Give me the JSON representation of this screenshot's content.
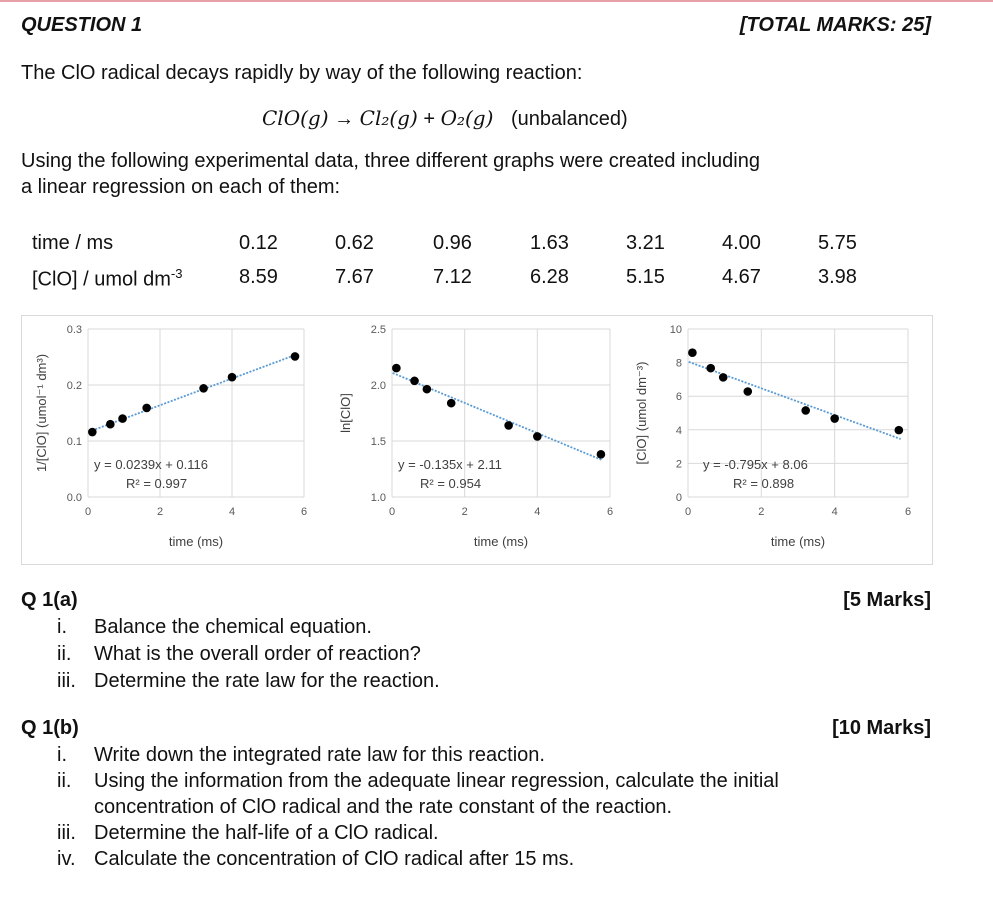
{
  "question": {
    "title": "QUESTION 1",
    "total_marks": "[TOTAL MARKS: 25]",
    "intro": "The ClO radical decays rapidly by way of the following reaction:",
    "equation": {
      "reactant": "ClO(g)",
      "arrow": "→",
      "product1": "Cl₂(g)",
      "plus": "+",
      "product2": "O₂(g)",
      "note": "(unbalanced)"
    },
    "data_intro_line1": "Using the following experimental data, three different graphs were created including",
    "data_intro_line2": "a linear regression on each of them:"
  },
  "data_table": {
    "row_labels": [
      "time / ms",
      "[ClO] / umol dm"
    ],
    "conc_unit_sup": "-3",
    "time": [
      "0.12",
      "0.62",
      "0.96",
      "1.63",
      "3.21",
      "4.00",
      "5.75"
    ],
    "conc": [
      "8.59",
      "7.67",
      "7.12",
      "6.28",
      "5.15",
      "4.67",
      "3.98"
    ]
  },
  "chart_data": [
    {
      "type": "scatter",
      "xlabel": "time (ms)",
      "ylabel": "1/[ClO]  (umol⁻¹ dm³)",
      "xlim": [
        0,
        6
      ],
      "ylim": [
        0,
        0.3
      ],
      "xticks": [
        "0",
        "2",
        "4",
        "6"
      ],
      "yticks": [
        "0.0",
        "0.1",
        "0.2",
        "0.3"
      ],
      "x": [
        0.12,
        0.62,
        0.96,
        1.63,
        3.21,
        4.0,
        5.75
      ],
      "y": [
        0.116,
        0.13,
        0.14,
        0.159,
        0.194,
        0.214,
        0.251
      ],
      "trendline": {
        "slope": 0.0239,
        "intercept": 0.116
      },
      "equation_label": "y = 0.0239x + 0.116",
      "r2_label": "R² = 0.997",
      "grid": true
    },
    {
      "type": "scatter",
      "xlabel": "time (ms)",
      "ylabel": "ln[ClO]",
      "xlim": [
        0,
        6
      ],
      "ylim": [
        1.0,
        2.5
      ],
      "xticks": [
        "0",
        "2",
        "4",
        "6"
      ],
      "yticks": [
        "1.0",
        "1.5",
        "2.0",
        "2.5"
      ],
      "x": [
        0.12,
        0.62,
        0.96,
        1.63,
        3.21,
        4.0,
        5.75
      ],
      "y": [
        2.151,
        2.037,
        1.963,
        1.838,
        1.639,
        1.541,
        1.381
      ],
      "trendline": {
        "slope": -0.135,
        "intercept": 2.11
      },
      "equation_label": "y = -0.135x + 2.11",
      "r2_label": "R² = 0.954",
      "grid": true
    },
    {
      "type": "scatter",
      "xlabel": "time (ms)",
      "ylabel": "[ClO]  (umol dm⁻³)",
      "xlim": [
        0,
        6
      ],
      "ylim": [
        0,
        10
      ],
      "xticks": [
        "0",
        "2",
        "4",
        "6"
      ],
      "yticks": [
        "0",
        "2",
        "4",
        "6",
        "8",
        "10"
      ],
      "x": [
        0.12,
        0.62,
        0.96,
        1.63,
        3.21,
        4.0,
        5.75
      ],
      "y": [
        8.59,
        7.67,
        7.12,
        6.28,
        5.15,
        4.67,
        3.98
      ],
      "trendline": {
        "slope": -0.795,
        "intercept": 8.06
      },
      "equation_label": "y = -0.795x + 8.06",
      "r2_label": "R² = 0.898",
      "grid": true
    }
  ],
  "colors": {
    "trendline": "#5b9bd5",
    "grid": "#d9d9d9",
    "marker": "#000000",
    "axis_text": "#595959"
  },
  "q1a": {
    "title": "Q 1(a)",
    "marks": "[5 Marks]",
    "items": [
      {
        "num": "i.",
        "text": "Balance the chemical equation."
      },
      {
        "num": "ii.",
        "text": "What is the overall order of reaction?"
      },
      {
        "num": "iii.",
        "text": "Determine the rate law for the reaction."
      }
    ]
  },
  "q1b": {
    "title": "Q 1(b)",
    "marks": "[10 Marks]",
    "items": [
      {
        "num": "i.",
        "text": "Write down the integrated rate law for this reaction."
      },
      {
        "num": "ii.",
        "text": "Using the information from the adequate linear regression, calculate the initial",
        "text2": "concentration of ClO radical and the rate constant of the reaction."
      },
      {
        "num": "iii.",
        "text": "Determine the half-life of a ClO radical."
      },
      {
        "num": "iv.",
        "text": "Calculate the concentration of ClO radical after 15 ms."
      }
    ]
  }
}
